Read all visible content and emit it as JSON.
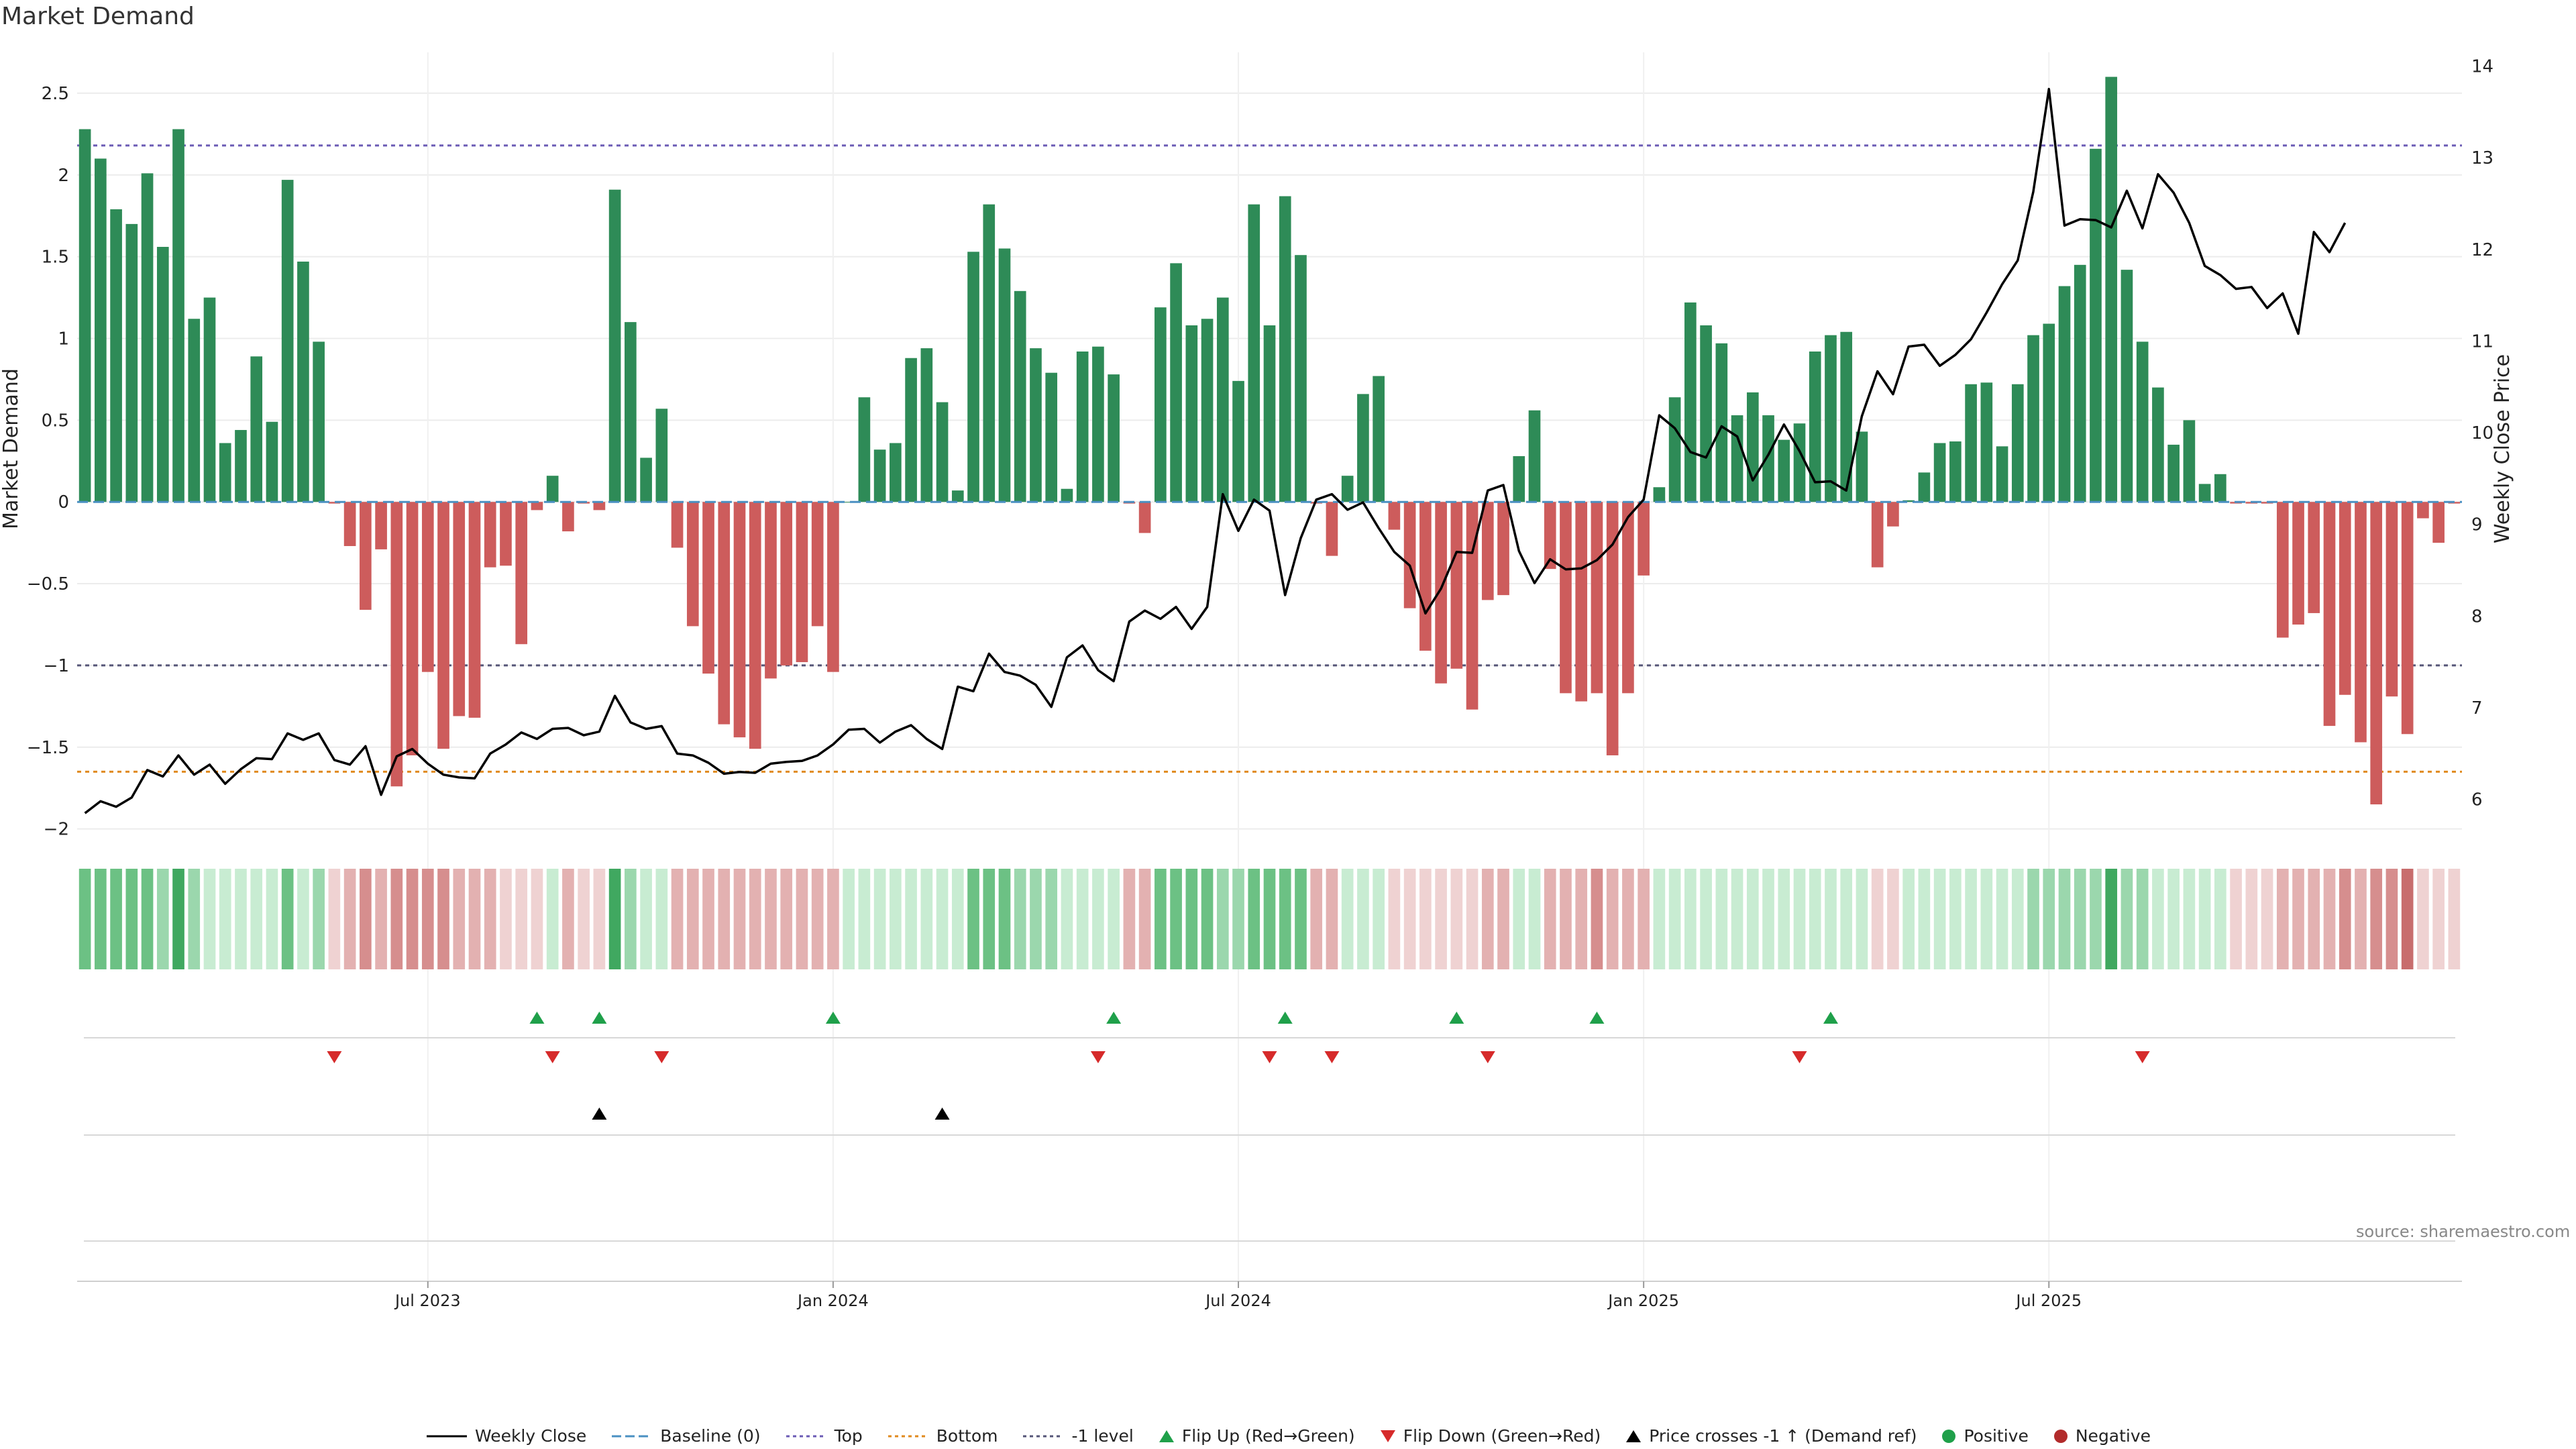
{
  "title": "Market Demand",
  "source": "source: sharemaestro.com",
  "colors": {
    "positive": "#2e8b57",
    "negative": "#cd5c5c",
    "price_line": "#000000",
    "top_line": "#6b5bb5",
    "bottom_line": "#e08a1e",
    "minus1_line": "#555577",
    "baseline": "#4a90c2",
    "flip_up": "#1fa04a",
    "flip_down": "#d62a2a",
    "cross": "#000000",
    "strip_green": [
      "#c8ecd2",
      "#9bd7ad",
      "#6cc184",
      "#40a860"
    ],
    "strip_red": [
      "#efd2d2",
      "#e3b1b1",
      "#d68e8e",
      "#c86d6d"
    ]
  },
  "chart_data": {
    "type": "bar",
    "title": "Market Demand",
    "ylabel": "Market Demand",
    "y2label": "Weekly Close Price",
    "ylim": [
      -2.1,
      2.75
    ],
    "y2lim": [
      5.5,
      14.15
    ],
    "yticks": [
      "2.5",
      "2",
      "1.5",
      "1",
      "0.5",
      "0",
      "−0.5",
      "−1",
      "−1.5",
      "−2"
    ],
    "y2ticks": [
      "14",
      "13",
      "12",
      "11",
      "10",
      "9",
      "8",
      "7",
      "6"
    ],
    "xticks": [
      "Jul 2023",
      "Jan 2024",
      "Jul 2024",
      "Jan 2025",
      "Jul 2025"
    ],
    "xtick_weeks": [
      22,
      48,
      74,
      100,
      126
    ],
    "levels": {
      "top": 2.18,
      "bottom": -1.65,
      "minus1": -1.0,
      "baseline": 0
    },
    "demand": [
      2.28,
      2.1,
      1.79,
      1.7,
      2.01,
      1.56,
      2.28,
      1.12,
      1.25,
      0.36,
      0.44,
      0.89,
      0.49,
      1.97,
      1.47,
      0.98,
      -0.01,
      -0.27,
      -0.66,
      -0.29,
      -1.74,
      -1.55,
      -1.04,
      -1.51,
      -1.31,
      -1.32,
      -0.4,
      -0.39,
      -0.87,
      -0.05,
      0.16,
      -0.18,
      -0.01,
      -0.05,
      1.91,
      1.1,
      0.27,
      0.57,
      -0.28,
      -0.76,
      -1.05,
      -1.36,
      -1.44,
      -1.51,
      -1.08,
      -1.0,
      -0.98,
      -0.76,
      -1.04,
      0.0,
      0.64,
      0.32,
      0.36,
      0.88,
      0.94,
      0.61,
      0.07,
      1.53,
      1.82,
      1.55,
      1.29,
      0.94,
      0.79,
      0.08,
      0.92,
      0.95,
      0.78,
      -0.01,
      -0.19,
      1.19,
      1.46,
      1.08,
      1.12,
      1.25,
      0.74,
      1.82,
      1.08,
      1.87,
      1.51,
      -0.01,
      -0.33,
      0.16,
      0.66,
      0.77,
      -0.17,
      -0.65,
      -0.91,
      -1.11,
      -1.02,
      -1.27,
      -0.6,
      -0.57,
      0.28,
      0.56,
      -0.41,
      -1.17,
      -1.22,
      -1.17,
      -1.55,
      -1.17,
      -0.45,
      0.09,
      0.64,
      1.22,
      1.08,
      0.97,
      0.53,
      0.67,
      0.53,
      0.38,
      0.48,
      0.92,
      1.02,
      1.04,
      0.43,
      -0.4,
      -0.15,
      0.01,
      0.18,
      0.36,
      0.37,
      0.72,
      0.73,
      0.34,
      0.72,
      1.02,
      1.09,
      1.32,
      1.45,
      2.16,
      2.6,
      1.42,
      0.98,
      0.7,
      0.35,
      0.5,
      0.11,
      0.17,
      -0.01,
      -0.01,
      -0.01,
      -0.83,
      -0.75,
      -0.68,
      -1.37,
      -1.18,
      -1.47,
      -1.85,
      -1.19,
      -1.42,
      -0.1,
      -0.25,
      -0.01
    ],
    "price": [
      5.85,
      5.98,
      5.92,
      6.02,
      6.32,
      6.25,
      6.48,
      6.27,
      6.38,
      6.17,
      6.33,
      6.45,
      6.44,
      6.72,
      6.65,
      6.72,
      6.43,
      6.38,
      6.58,
      6.05,
      6.47,
      6.55,
      6.39,
      6.27,
      6.24,
      6.23,
      6.5,
      6.6,
      6.73,
      6.66,
      6.77,
      6.78,
      6.7,
      6.74,
      7.13,
      6.84,
      6.77,
      6.8,
      6.5,
      6.48,
      6.4,
      6.28,
      6.3,
      6.29,
      6.39,
      6.41,
      6.42,
      6.48,
      6.6,
      6.76,
      6.77,
      6.62,
      6.74,
      6.81,
      6.66,
      6.55,
      7.23,
      7.18,
      7.59,
      7.39,
      7.35,
      7.25,
      7.01,
      7.55,
      7.68,
      7.41,
      7.29,
      7.94,
      8.06,
      7.97,
      8.1,
      7.86,
      8.1,
      9.33,
      8.93,
      9.27,
      9.15,
      8.23,
      8.85,
      9.27,
      9.33,
      9.16,
      9.24,
      8.96,
      8.7,
      8.55,
      8.03,
      8.3,
      8.7,
      8.69,
      9.37,
      9.43,
      8.71,
      8.36,
      8.62,
      8.51,
      8.52,
      8.61,
      8.78,
      9.08,
      9.27,
      10.19,
      10.05,
      9.79,
      9.73,
      10.07,
      9.96,
      9.48,
      9.76,
      10.09,
      9.8,
      9.46,
      9.47,
      9.37,
      10.18,
      10.67,
      10.42,
      10.94,
      10.96,
      10.73,
      10.85,
      11.02,
      11.31,
      11.62,
      11.88,
      12.63,
      13.75,
      12.26,
      12.33,
      12.32,
      12.24,
      12.64,
      12.23,
      12.82,
      12.62,
      12.29,
      11.82,
      11.72,
      11.57,
      11.59,
      11.36,
      11.52,
      11.08,
      12.19,
      11.97,
      12.29
    ],
    "strip_levels": [
      3,
      3,
      3,
      3,
      3,
      2,
      4,
      2,
      1,
      1,
      1,
      1,
      1,
      3,
      1,
      2,
      1,
      2,
      3,
      2,
      3,
      3,
      3,
      3,
      2,
      2,
      2,
      1,
      1,
      1,
      1,
      2,
      1,
      1,
      4,
      2,
      1,
      1,
      2,
      2,
      2,
      2,
      2,
      2,
      2,
      2,
      2,
      2,
      2,
      1,
      1,
      1,
      1,
      1,
      1,
      1,
      1,
      3,
      3,
      3,
      2,
      2,
      2,
      1,
      1,
      1,
      1,
      2,
      2,
      3,
      3,
      3,
      3,
      2,
      2,
      3,
      3,
      3,
      3,
      2,
      2,
      1,
      1,
      1,
      1,
      1,
      1,
      1,
      1,
      1,
      2,
      2,
      1,
      1,
      2,
      2,
      2,
      3,
      2,
      2,
      2,
      1,
      1,
      1,
      1,
      1,
      1,
      1,
      1,
      1,
      1,
      1,
      1,
      1,
      1,
      1,
      1,
      1,
      1,
      1,
      1,
      1,
      1,
      1,
      1,
      2,
      2,
      2,
      2,
      2,
      4,
      2,
      2,
      1,
      1,
      1,
      1,
      1,
      1,
      1,
      1,
      2,
      2,
      2,
      2,
      3,
      2,
      3,
      3,
      4,
      1,
      1
    ],
    "flip_up_weeks": [
      29,
      33,
      48,
      66,
      77,
      88,
      97,
      112
    ],
    "flip_down_weeks": [
      16,
      30,
      37,
      65,
      76,
      80,
      90,
      110,
      132
    ],
    "price_cross_weeks": [
      33,
      55
    ]
  },
  "legend": [
    {
      "label": "Weekly Close",
      "kind": "line-solid",
      "color": "#000000"
    },
    {
      "label": "Baseline (0)",
      "kind": "line-dash",
      "color": "#4a90c2"
    },
    {
      "label": "Top",
      "kind": "line-dot",
      "color": "#6b5bb5"
    },
    {
      "label": "Bottom",
      "kind": "line-dot",
      "color": "#e08a1e"
    },
    {
      "label": "-1 level",
      "kind": "line-dot",
      "color": "#555577"
    },
    {
      "label": "Flip Up (Red→Green)",
      "kind": "tri-up",
      "color": "#1fa04a"
    },
    {
      "label": "Flip Down (Green→Red)",
      "kind": "tri-down",
      "color": "#d62a2a"
    },
    {
      "label": "Price crosses -1 ↑ (Demand ref)",
      "kind": "tri-up",
      "color": "#000000"
    },
    {
      "label": "Positive",
      "kind": "dot",
      "color": "#1fa04a"
    },
    {
      "label": "Negative",
      "kind": "dot",
      "color": "#b22b2b"
    }
  ]
}
